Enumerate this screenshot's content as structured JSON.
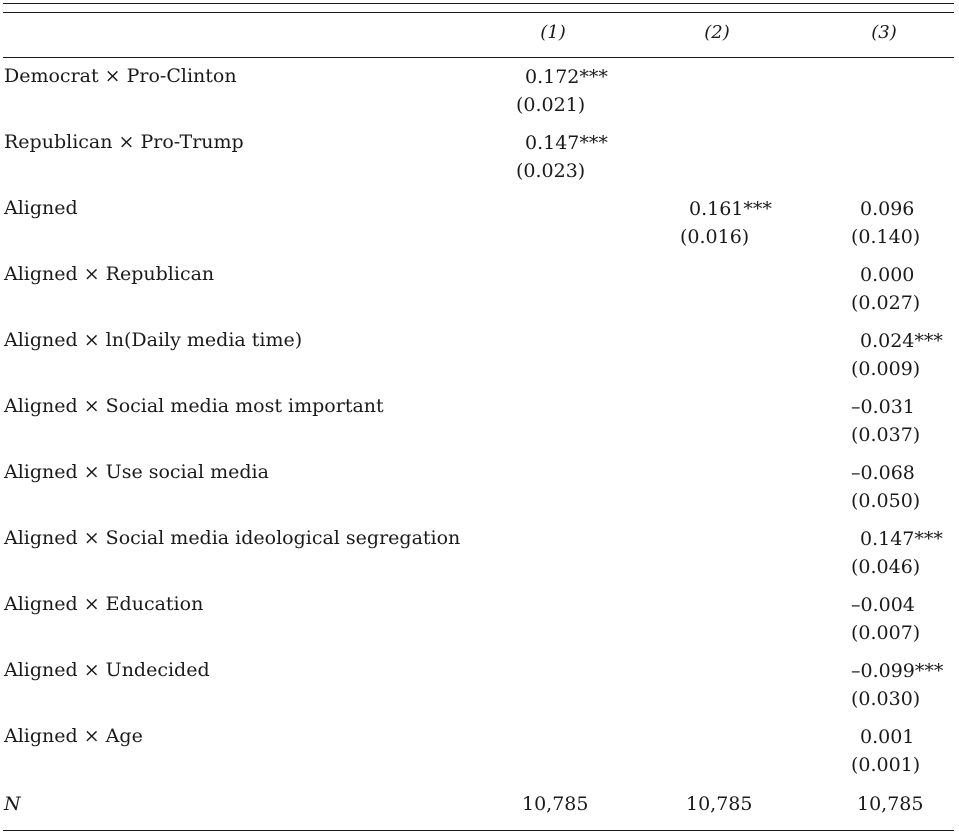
{
  "columns": [
    "(1)",
    "(2)",
    "(3)"
  ],
  "rows": [
    {
      "label": "Democrat × Pro-Clinton",
      "c1": {
        "v": "0.172***",
        "se": "(0.021)"
      }
    },
    {
      "label": "Republican × Pro-Trump",
      "c1": {
        "v": "0.147***",
        "se": "(0.023)"
      }
    },
    {
      "label": "Aligned",
      "c2": {
        "v": "0.161***",
        "se": "(0.016)"
      },
      "c3": {
        "v": "0.096",
        "se": "(0.140)"
      }
    },
    {
      "label": "Aligned × Republican",
      "c3": {
        "v": "0.000",
        "se": "(0.027)"
      }
    },
    {
      "label": "Aligned × ln(Daily media time)",
      "c3": {
        "v": "0.024***",
        "se": "(0.009)"
      }
    },
    {
      "label": "Aligned × Social media most important",
      "c3": {
        "v": "–0.031",
        "se": "(0.037)"
      }
    },
    {
      "label": "Aligned × Use social media",
      "c3": {
        "v": "–0.068",
        "se": "(0.050)"
      }
    },
    {
      "label": "Aligned × Social media ideological segregation",
      "c3": {
        "v": "0.147***",
        "se": "(0.046)"
      }
    },
    {
      "label": "Aligned × Education",
      "c3": {
        "v": "–0.004",
        "se": "(0.007)"
      }
    },
    {
      "label": "Aligned × Undecided",
      "c3": {
        "v": "–0.099***",
        "se": "(0.030)"
      }
    },
    {
      "label": "Aligned × Age",
      "c3": {
        "v": "0.001",
        "se": "(0.001)"
      }
    }
  ],
  "n_row": {
    "label": "N",
    "values": [
      "10,785",
      "10,785",
      "10,785"
    ]
  }
}
